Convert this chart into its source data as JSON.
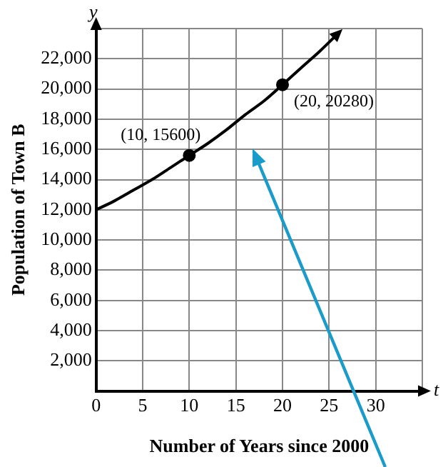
{
  "chart_data": {
    "type": "line",
    "xlabel": "Number of Years since 2000",
    "ylabel": "Population of Town B",
    "x": [
      0,
      2,
      4,
      6,
      8,
      10,
      12,
      14,
      16,
      18,
      20,
      22,
      24,
      26
    ],
    "series": [
      {
        "color": "#000000",
        "marker": "none",
        "values": [
          12000,
          12600,
          13300,
          14000,
          14800,
          15600,
          16400,
          17300,
          18300,
          19200,
          20280,
          21400,
          22500,
          23700
        ]
      },
      {
        "type": "scatter",
        "color": "#000000",
        "marker": "circle",
        "x": [
          10,
          20
        ],
        "values": [
          15600,
          20280
        ]
      }
    ],
    "xlim": [
      0,
      35
    ],
    "xticks": [
      0,
      5,
      10,
      15,
      20,
      25,
      30,
      {
        "value": 35,
        "label": null
      }
    ],
    "ylim": [
      0,
      24000
    ],
    "yticks": [
      {
        "value": 0,
        "label": null
      },
      {
        "value": 2000,
        "label": "2,000"
      },
      {
        "value": 4000,
        "label": "4,000"
      },
      {
        "value": 6000,
        "label": "6,000"
      },
      {
        "value": 8000,
        "label": "8,000"
      },
      {
        "value": 10000,
        "label": "10,000"
      },
      {
        "value": 12000,
        "label": "12,000"
      },
      {
        "value": 14000,
        "label": "14,000"
      },
      {
        "value": 16000,
        "label": "16,000"
      },
      {
        "value": 18000,
        "label": "18,000"
      },
      {
        "value": 20000,
        "label": "20,000"
      },
      {
        "value": 22000,
        "label": "22,000"
      },
      {
        "value": 24000,
        "label": null
      }
    ],
    "annotations": [
      {
        "text": "(10, 15600)",
        "x": 10,
        "y": 15600
      },
      {
        "text": "(20, 20280)",
        "x": 20,
        "y": 20280
      },
      "y",
      "t"
    ],
    "grid": true,
    "legend": false
  }
}
